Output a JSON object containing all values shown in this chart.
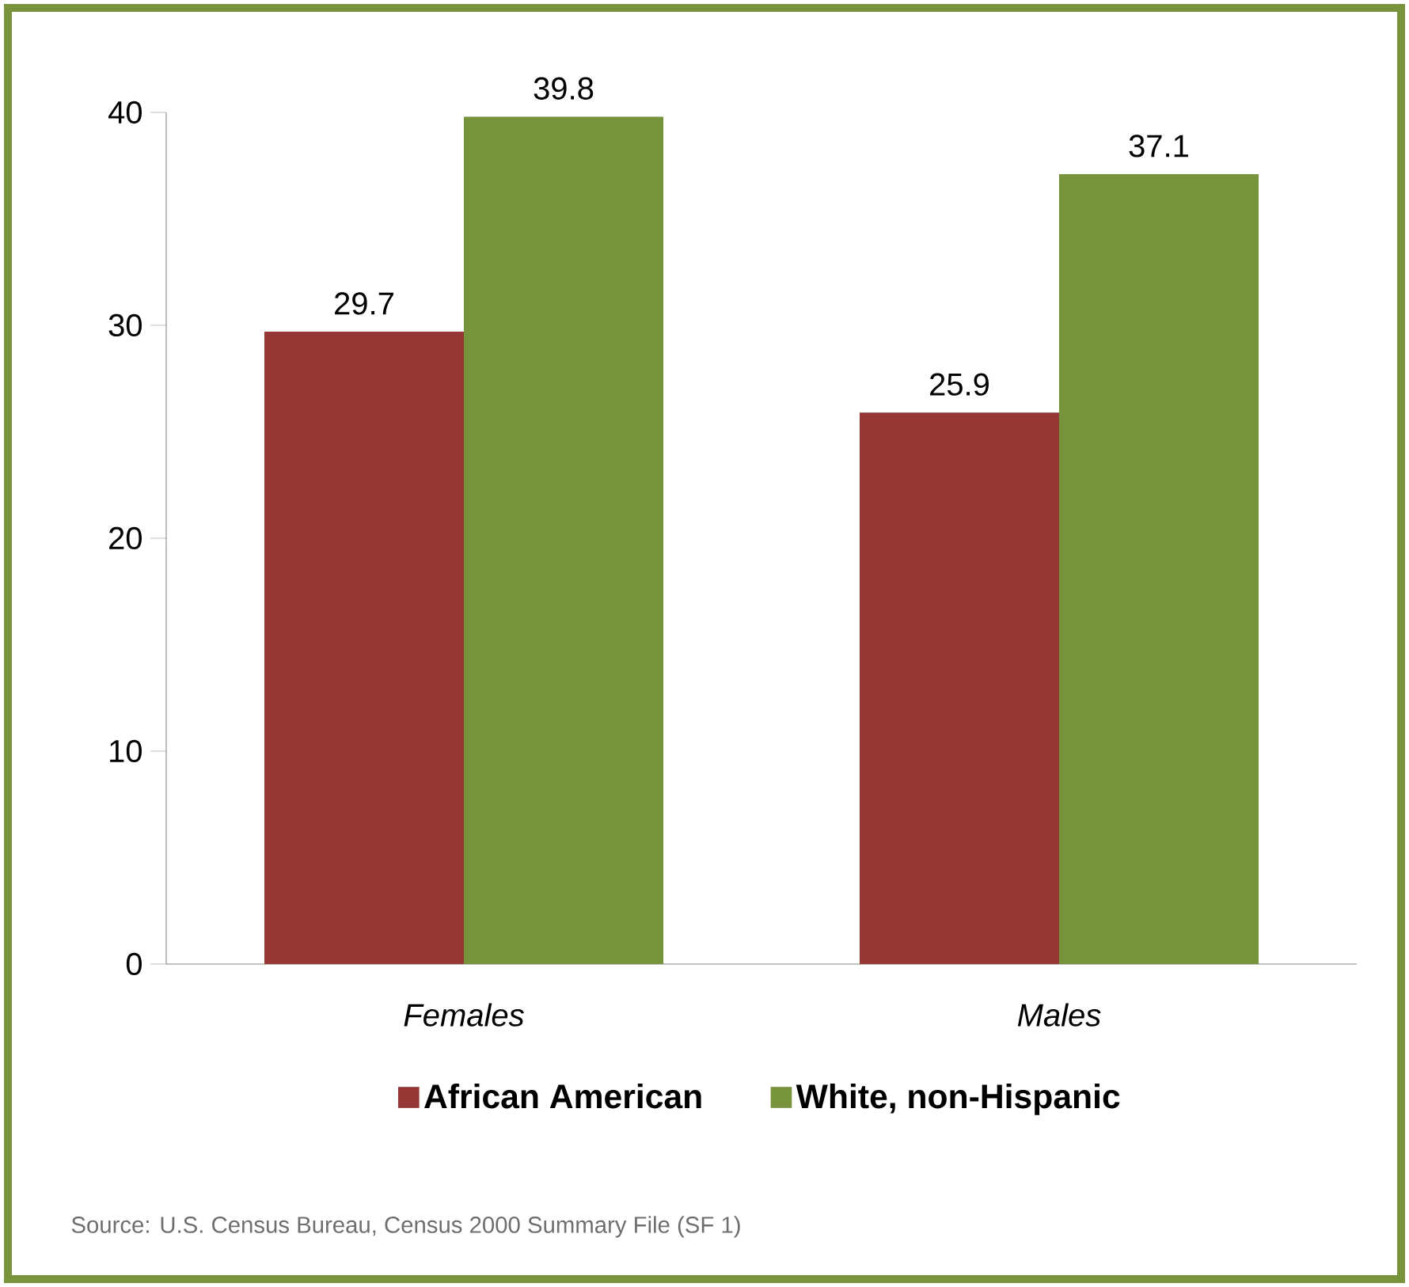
{
  "chart_data": {
    "type": "bar",
    "categories": [
      "Females",
      "Males"
    ],
    "series": [
      {
        "name": "African American",
        "color": "#953735",
        "values": [
          29.7,
          25.9
        ]
      },
      {
        "name": "White, non-Hispanic",
        "color": "#77933c",
        "values": [
          39.8,
          37.1
        ]
      }
    ],
    "ylim": [
      0,
      40
    ],
    "yticks": [
      0,
      10,
      20,
      30,
      40
    ],
    "data_labels": true,
    "legend": "bottom",
    "grid": false,
    "annotations": [
      "Source: U.S. Census Bureau, Census 2000 Summary File (SF 1)"
    ]
  }
}
